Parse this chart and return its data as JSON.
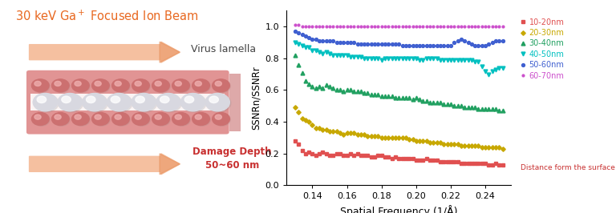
{
  "title_left_color": "#E86820",
  "damage_label_color": "#C83030",
  "xlabel": "Spatial Frequency (1/Å)",
  "ylabel": "SSNRn/SSNRr",
  "legend_title": "Distance form the surface",
  "legend_title_color": "#C83030",
  "series": [
    {
      "label": "10-20nm",
      "color": "#E05050",
      "marker": "s",
      "y": [
        0.28,
        0.26,
        0.22,
        0.2,
        0.21,
        0.2,
        0.19,
        0.2,
        0.21,
        0.2,
        0.19,
        0.19,
        0.2,
        0.2,
        0.19,
        0.19,
        0.2,
        0.19,
        0.2,
        0.19,
        0.19,
        0.19,
        0.18,
        0.18,
        0.19,
        0.19,
        0.18,
        0.18,
        0.17,
        0.18,
        0.17,
        0.17,
        0.17,
        0.17,
        0.17,
        0.16,
        0.16,
        0.16,
        0.17,
        0.16,
        0.16,
        0.16,
        0.15,
        0.15,
        0.15,
        0.15,
        0.15,
        0.15,
        0.14,
        0.14,
        0.14,
        0.14,
        0.14,
        0.14,
        0.14,
        0.14,
        0.13,
        0.13,
        0.14,
        0.13,
        0.13
      ]
    },
    {
      "label": "20-30nm",
      "color": "#C8A800",
      "marker": "D",
      "y": [
        0.49,
        0.46,
        0.42,
        0.41,
        0.4,
        0.38,
        0.36,
        0.36,
        0.35,
        0.35,
        0.34,
        0.34,
        0.34,
        0.33,
        0.32,
        0.33,
        0.33,
        0.33,
        0.32,
        0.32,
        0.32,
        0.31,
        0.31,
        0.31,
        0.31,
        0.3,
        0.3,
        0.3,
        0.3,
        0.3,
        0.3,
        0.3,
        0.3,
        0.29,
        0.29,
        0.28,
        0.28,
        0.28,
        0.28,
        0.27,
        0.27,
        0.27,
        0.27,
        0.26,
        0.26,
        0.26,
        0.26,
        0.26,
        0.25,
        0.25,
        0.25,
        0.25,
        0.25,
        0.25,
        0.24,
        0.24,
        0.24,
        0.24,
        0.24,
        0.24,
        0.23
      ]
    },
    {
      "label": "30-40nm",
      "color": "#20A060",
      "marker": "^",
      "y": [
        0.82,
        0.76,
        0.71,
        0.66,
        0.64,
        0.62,
        0.61,
        0.62,
        0.61,
        0.63,
        0.62,
        0.61,
        0.6,
        0.6,
        0.59,
        0.6,
        0.6,
        0.59,
        0.59,
        0.59,
        0.58,
        0.58,
        0.57,
        0.57,
        0.57,
        0.56,
        0.56,
        0.56,
        0.56,
        0.55,
        0.55,
        0.55,
        0.55,
        0.55,
        0.54,
        0.55,
        0.54,
        0.53,
        0.53,
        0.52,
        0.52,
        0.52,
        0.52,
        0.51,
        0.51,
        0.51,
        0.5,
        0.5,
        0.5,
        0.49,
        0.49,
        0.49,
        0.49,
        0.48,
        0.48,
        0.48,
        0.48,
        0.48,
        0.48,
        0.47,
        0.47
      ]
    },
    {
      "label": "40-50nm",
      "color": "#00C0C0",
      "marker": "v",
      "y": [
        0.9,
        0.89,
        0.88,
        0.87,
        0.87,
        0.85,
        0.85,
        0.84,
        0.83,
        0.84,
        0.83,
        0.82,
        0.82,
        0.82,
        0.82,
        0.82,
        0.81,
        0.81,
        0.81,
        0.81,
        0.8,
        0.8,
        0.8,
        0.8,
        0.8,
        0.79,
        0.8,
        0.8,
        0.8,
        0.8,
        0.8,
        0.8,
        0.8,
        0.8,
        0.8,
        0.8,
        0.79,
        0.79,
        0.8,
        0.8,
        0.8,
        0.8,
        0.79,
        0.79,
        0.79,
        0.79,
        0.79,
        0.79,
        0.79,
        0.79,
        0.79,
        0.79,
        0.78,
        0.78,
        0.75,
        0.72,
        0.7,
        0.72,
        0.73,
        0.74,
        0.74
      ]
    },
    {
      "label": "50-60nm",
      "color": "#4060D0",
      "marker": "o",
      "y": [
        0.97,
        0.96,
        0.95,
        0.94,
        0.93,
        0.92,
        0.92,
        0.91,
        0.91,
        0.91,
        0.91,
        0.91,
        0.9,
        0.9,
        0.9,
        0.9,
        0.9,
        0.9,
        0.89,
        0.89,
        0.89,
        0.89,
        0.89,
        0.89,
        0.89,
        0.89,
        0.89,
        0.89,
        0.89,
        0.89,
        0.89,
        0.88,
        0.88,
        0.88,
        0.88,
        0.88,
        0.88,
        0.88,
        0.88,
        0.88,
        0.88,
        0.88,
        0.88,
        0.88,
        0.88,
        0.88,
        0.9,
        0.91,
        0.92,
        0.91,
        0.9,
        0.89,
        0.88,
        0.88,
        0.88,
        0.88,
        0.89,
        0.9,
        0.91,
        0.91,
        0.91
      ]
    },
    {
      "label": "60-70nm",
      "color": "#CC50CC",
      "marker": ".",
      "y": [
        1.01,
        1.01,
        1.0,
        1.0,
        1.0,
        1.0,
        1.0,
        1.0,
        1.0,
        1.0,
        1.0,
        1.0,
        1.0,
        1.0,
        1.0,
        1.0,
        1.0,
        1.0,
        1.0,
        1.0,
        1.0,
        1.0,
        1.0,
        1.0,
        1.0,
        1.0,
        1.0,
        1.0,
        1.0,
        1.0,
        1.0,
        1.0,
        1.0,
        1.0,
        1.0,
        1.0,
        1.0,
        1.0,
        1.0,
        1.0,
        1.0,
        1.0,
        1.0,
        1.0,
        1.0,
        1.0,
        1.0,
        1.0,
        1.0,
        1.0,
        1.0,
        1.0,
        1.0,
        1.0,
        1.0,
        1.0,
        1.0,
        1.0,
        1.0,
        1.0,
        1.0
      ]
    }
  ],
  "xlim": [
    0.125,
    0.255
  ],
  "ylim": [
    0.0,
    1.1
  ],
  "yticks": [
    0.0,
    0.2,
    0.4,
    0.6,
    0.8,
    1.0
  ],
  "xticks": [
    0.14,
    0.16,
    0.18,
    0.2,
    0.22,
    0.24
  ],
  "bg_color": "#FFFFFF",
  "lamella_color": "#D87070",
  "arrow_color_light": "#F5C0A0",
  "arrow_color_dark": "#E8905A",
  "damage_rect_color": "#C87070",
  "sphere_pink": "#CC7070",
  "sphere_pink_hi": "#F0B0B0",
  "sphere_grey": "#B0B0B8",
  "sphere_grey_hi": "#FFFFFF",
  "sphere_white": "#D8D8E0",
  "sphere_white_hi": "#FFFFFF"
}
